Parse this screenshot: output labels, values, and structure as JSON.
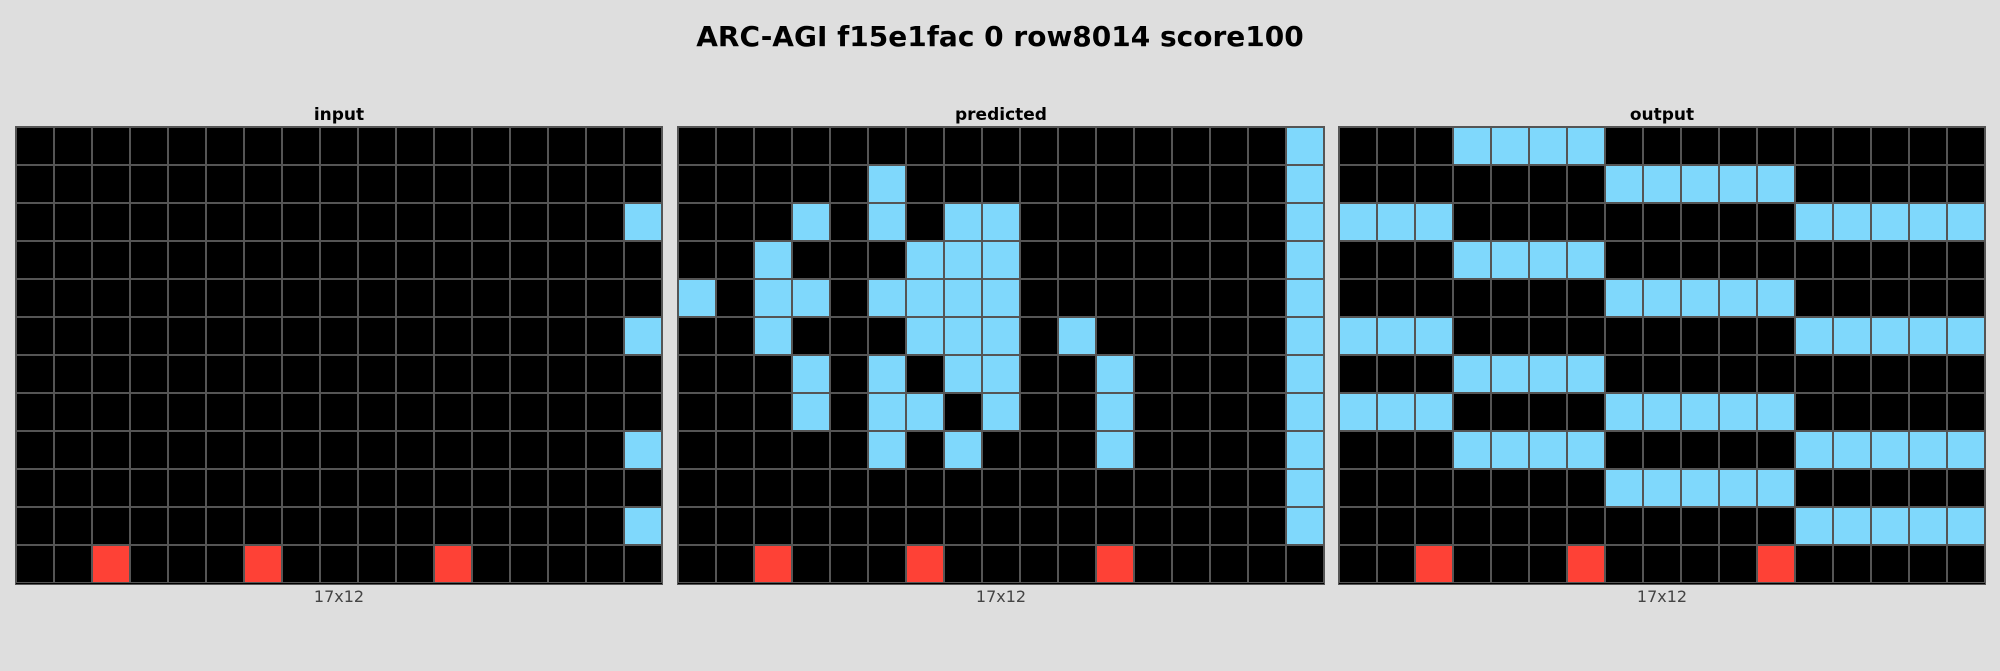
{
  "title": "ARC-AGI f15e1fac 0 row8014 score100",
  "palette": {
    "0": "#000000",
    "8": "#7fd8fc",
    "2": "#fe4136"
  },
  "panels": [
    {
      "label": "input",
      "dims": "17x12",
      "grid": [
        [
          0,
          0,
          0,
          0,
          0,
          0,
          0,
          0,
          0,
          0,
          0,
          0,
          0,
          0,
          0,
          0,
          0
        ],
        [
          0,
          0,
          0,
          0,
          0,
          0,
          0,
          0,
          0,
          0,
          0,
          0,
          0,
          0,
          0,
          0,
          0
        ],
        [
          0,
          0,
          0,
          0,
          0,
          0,
          0,
          0,
          0,
          0,
          0,
          0,
          0,
          0,
          0,
          0,
          8
        ],
        [
          0,
          0,
          0,
          0,
          0,
          0,
          0,
          0,
          0,
          0,
          0,
          0,
          0,
          0,
          0,
          0,
          0
        ],
        [
          0,
          0,
          0,
          0,
          0,
          0,
          0,
          0,
          0,
          0,
          0,
          0,
          0,
          0,
          0,
          0,
          0
        ],
        [
          0,
          0,
          0,
          0,
          0,
          0,
          0,
          0,
          0,
          0,
          0,
          0,
          0,
          0,
          0,
          0,
          8
        ],
        [
          0,
          0,
          0,
          0,
          0,
          0,
          0,
          0,
          0,
          0,
          0,
          0,
          0,
          0,
          0,
          0,
          0
        ],
        [
          0,
          0,
          0,
          0,
          0,
          0,
          0,
          0,
          0,
          0,
          0,
          0,
          0,
          0,
          0,
          0,
          0
        ],
        [
          0,
          0,
          0,
          0,
          0,
          0,
          0,
          0,
          0,
          0,
          0,
          0,
          0,
          0,
          0,
          0,
          8
        ],
        [
          0,
          0,
          0,
          0,
          0,
          0,
          0,
          0,
          0,
          0,
          0,
          0,
          0,
          0,
          0,
          0,
          0
        ],
        [
          0,
          0,
          0,
          0,
          0,
          0,
          0,
          0,
          0,
          0,
          0,
          0,
          0,
          0,
          0,
          0,
          8
        ],
        [
          0,
          0,
          2,
          0,
          0,
          0,
          2,
          0,
          0,
          0,
          0,
          2,
          0,
          0,
          0,
          0,
          0
        ]
      ]
    },
    {
      "label": "predicted",
      "dims": "17x12",
      "grid": [
        [
          0,
          0,
          0,
          0,
          0,
          0,
          0,
          0,
          0,
          0,
          0,
          0,
          0,
          0,
          0,
          0,
          8
        ],
        [
          0,
          0,
          0,
          0,
          0,
          8,
          0,
          0,
          0,
          0,
          0,
          0,
          0,
          0,
          0,
          0,
          8
        ],
        [
          0,
          0,
          0,
          8,
          0,
          8,
          0,
          8,
          8,
          0,
          0,
          0,
          0,
          0,
          0,
          0,
          8
        ],
        [
          0,
          0,
          8,
          0,
          0,
          0,
          8,
          8,
          8,
          0,
          0,
          0,
          0,
          0,
          0,
          0,
          8
        ],
        [
          8,
          0,
          8,
          8,
          0,
          8,
          8,
          8,
          8,
          0,
          0,
          0,
          0,
          0,
          0,
          0,
          8
        ],
        [
          0,
          0,
          8,
          0,
          0,
          0,
          8,
          8,
          8,
          0,
          8,
          0,
          0,
          0,
          0,
          0,
          8
        ],
        [
          0,
          0,
          0,
          8,
          0,
          8,
          0,
          8,
          8,
          0,
          0,
          8,
          0,
          0,
          0,
          0,
          8
        ],
        [
          0,
          0,
          0,
          8,
          0,
          8,
          8,
          0,
          8,
          0,
          0,
          8,
          0,
          0,
          0,
          0,
          8
        ],
        [
          0,
          0,
          0,
          0,
          0,
          8,
          0,
          8,
          0,
          0,
          0,
          8,
          0,
          0,
          0,
          0,
          8
        ],
        [
          0,
          0,
          0,
          0,
          0,
          0,
          0,
          0,
          0,
          0,
          0,
          0,
          0,
          0,
          0,
          0,
          8
        ],
        [
          0,
          0,
          0,
          0,
          0,
          0,
          0,
          0,
          0,
          0,
          0,
          0,
          0,
          0,
          0,
          0,
          8
        ],
        [
          0,
          0,
          2,
          0,
          0,
          0,
          2,
          0,
          0,
          0,
          0,
          2,
          0,
          0,
          0,
          0,
          0
        ]
      ]
    },
    {
      "label": "output",
      "dims": "17x12",
      "grid": [
        [
          0,
          0,
          0,
          8,
          8,
          8,
          8,
          0,
          0,
          0,
          0,
          0,
          0,
          0,
          0,
          0,
          0
        ],
        [
          0,
          0,
          0,
          0,
          0,
          0,
          0,
          8,
          8,
          8,
          8,
          8,
          0,
          0,
          0,
          0,
          0
        ],
        [
          8,
          8,
          8,
          0,
          0,
          0,
          0,
          0,
          0,
          0,
          0,
          0,
          8,
          8,
          8,
          8,
          8
        ],
        [
          0,
          0,
          0,
          8,
          8,
          8,
          8,
          0,
          0,
          0,
          0,
          0,
          0,
          0,
          0,
          0,
          0
        ],
        [
          0,
          0,
          0,
          0,
          0,
          0,
          0,
          8,
          8,
          8,
          8,
          8,
          0,
          0,
          0,
          0,
          0
        ],
        [
          8,
          8,
          8,
          0,
          0,
          0,
          0,
          0,
          0,
          0,
          0,
          0,
          8,
          8,
          8,
          8,
          8
        ],
        [
          0,
          0,
          0,
          8,
          8,
          8,
          8,
          0,
          0,
          0,
          0,
          0,
          0,
          0,
          0,
          0,
          0
        ],
        [
          8,
          8,
          8,
          0,
          0,
          0,
          0,
          8,
          8,
          8,
          8,
          8,
          0,
          0,
          0,
          0,
          0
        ],
        [
          0,
          0,
          0,
          8,
          8,
          8,
          8,
          0,
          0,
          0,
          0,
          0,
          8,
          8,
          8,
          8,
          8
        ],
        [
          0,
          0,
          0,
          0,
          0,
          0,
          0,
          8,
          8,
          8,
          8,
          8,
          0,
          0,
          0,
          0,
          0
        ],
        [
          0,
          0,
          0,
          0,
          0,
          0,
          0,
          0,
          0,
          0,
          0,
          0,
          8,
          8,
          8,
          8,
          8
        ],
        [
          0,
          0,
          2,
          0,
          0,
          0,
          2,
          0,
          0,
          0,
          0,
          2,
          0,
          0,
          0,
          0,
          0
        ]
      ]
    }
  ]
}
